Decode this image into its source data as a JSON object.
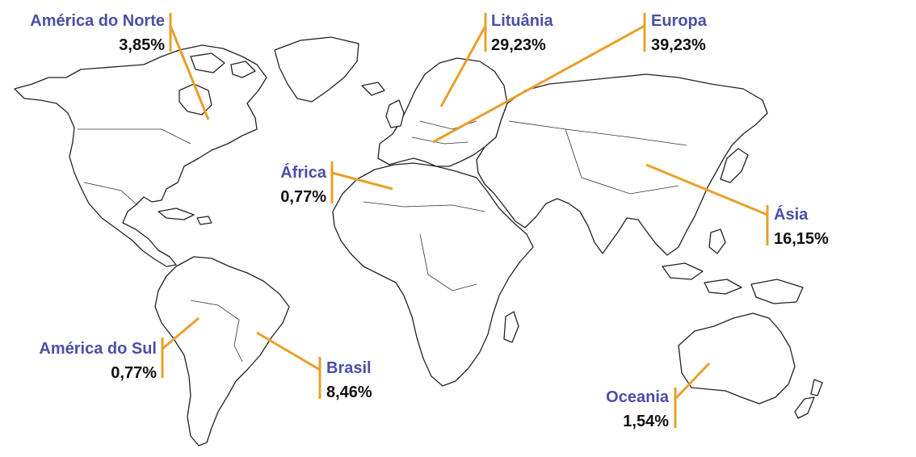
{
  "regions": [
    {
      "key": "america_norte",
      "name": "América do Norte",
      "value": "3,85%"
    },
    {
      "key": "lituania",
      "name": "Lituânia",
      "value": "29,23%"
    },
    {
      "key": "europa",
      "name": "Europa",
      "value": "39,23%"
    },
    {
      "key": "africa",
      "name": "África",
      "value": "0,77%"
    },
    {
      "key": "asia",
      "name": "Ásia",
      "value": "16,15%"
    },
    {
      "key": "america_sul",
      "name": "América do Sul",
      "value": "0,77%"
    },
    {
      "key": "brasil",
      "name": "Brasil",
      "value": "8,46%"
    },
    {
      "key": "oceania",
      "name": "Oceania",
      "value": "1,54%"
    }
  ],
  "colors": {
    "label": "#4A4FA6",
    "value": "#111111",
    "leader": "#E8A02A",
    "land_stroke": "#222222"
  }
}
